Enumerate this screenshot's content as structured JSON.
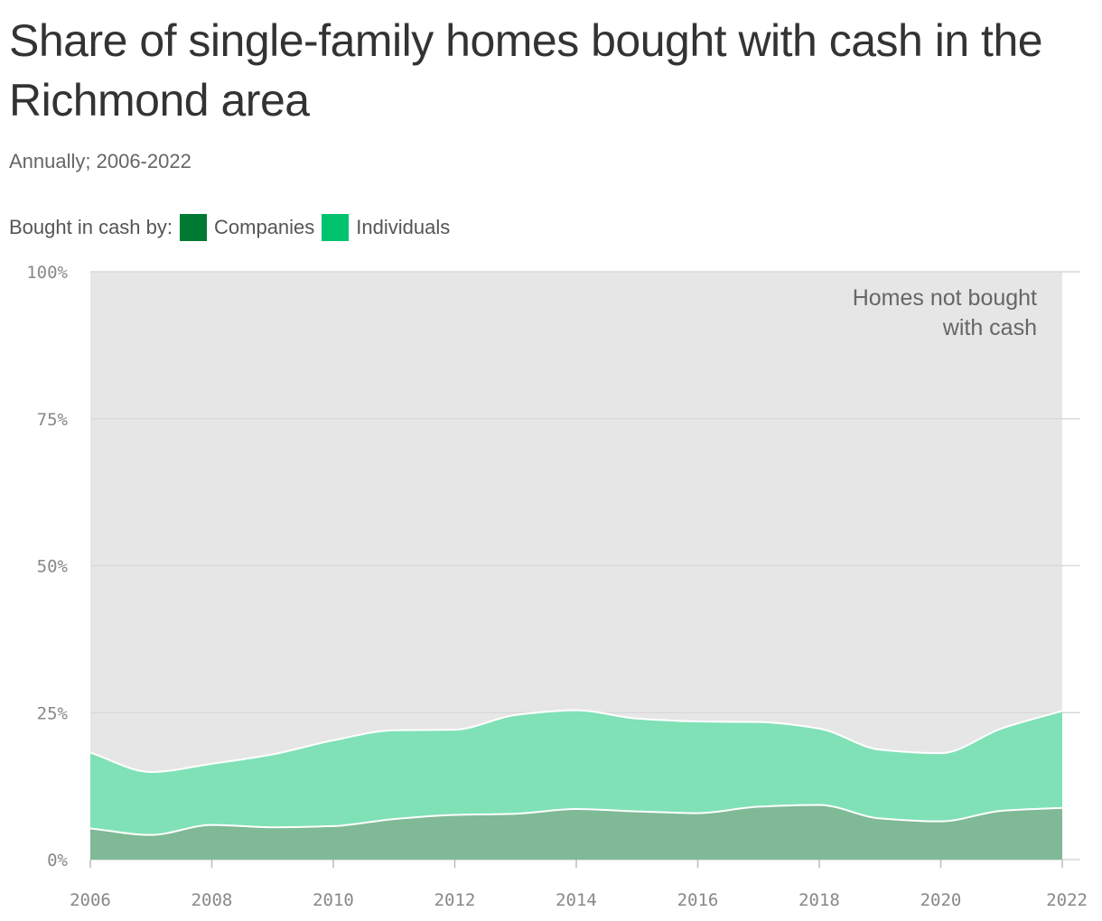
{
  "title": "Share of single-family homes bought with cash in the Richmond area",
  "subtitle": "Annually; 2006-2022",
  "legend": {
    "lead": "Bought in cash by:",
    "items": [
      {
        "label": "Companies",
        "color": "#007a33"
      },
      {
        "label": "Individuals",
        "color": "#00c26f"
      }
    ]
  },
  "annotation": {
    "line1": "Homes not bought",
    "line2": "with cash"
  },
  "colors": {
    "companies_area": "#80b995",
    "individuals_area": "#80e1b6",
    "not_cash_area": "#e6e6e6",
    "grid": "#d9d9d9"
  },
  "chart_data": {
    "type": "area",
    "stacked": true,
    "x": [
      2006,
      2007,
      2008,
      2009,
      2010,
      2011,
      2012,
      2013,
      2014,
      2015,
      2016,
      2017,
      2018,
      2019,
      2020,
      2021,
      2022
    ],
    "series": [
      {
        "name": "Companies",
        "values": [
          5.3,
          4.2,
          5.9,
          5.5,
          5.7,
          6.9,
          7.6,
          7.8,
          8.6,
          8.2,
          7.9,
          9.0,
          9.3,
          7.0,
          6.5,
          8.3,
          8.8
        ]
      },
      {
        "name": "Individuals",
        "values": [
          12.9,
          10.7,
          10.4,
          12.4,
          14.6,
          15.1,
          14.5,
          16.8,
          16.8,
          15.8,
          15.6,
          14.4,
          13.0,
          11.7,
          11.6,
          14.0,
          16.5
        ]
      }
    ],
    "totals": [
      18.2,
      14.9,
      16.3,
      17.9,
      20.3,
      22.0,
      22.1,
      24.6,
      25.4,
      24.0,
      23.5,
      23.4,
      22.3,
      18.7,
      18.1,
      22.3,
      25.3
    ],
    "ylim": [
      0,
      100
    ],
    "yticks": [
      0,
      25,
      50,
      75,
      100
    ],
    "ytick_labels": [
      "0%",
      "25%",
      "50%",
      "75%",
      "100%"
    ],
    "xticks": [
      2006,
      2008,
      2010,
      2012,
      2014,
      2016,
      2018,
      2020,
      2022
    ],
    "xtick_labels": [
      "2006",
      "2008",
      "2010",
      "2012",
      "2014",
      "2016",
      "2018",
      "2020",
      "2022"
    ]
  }
}
